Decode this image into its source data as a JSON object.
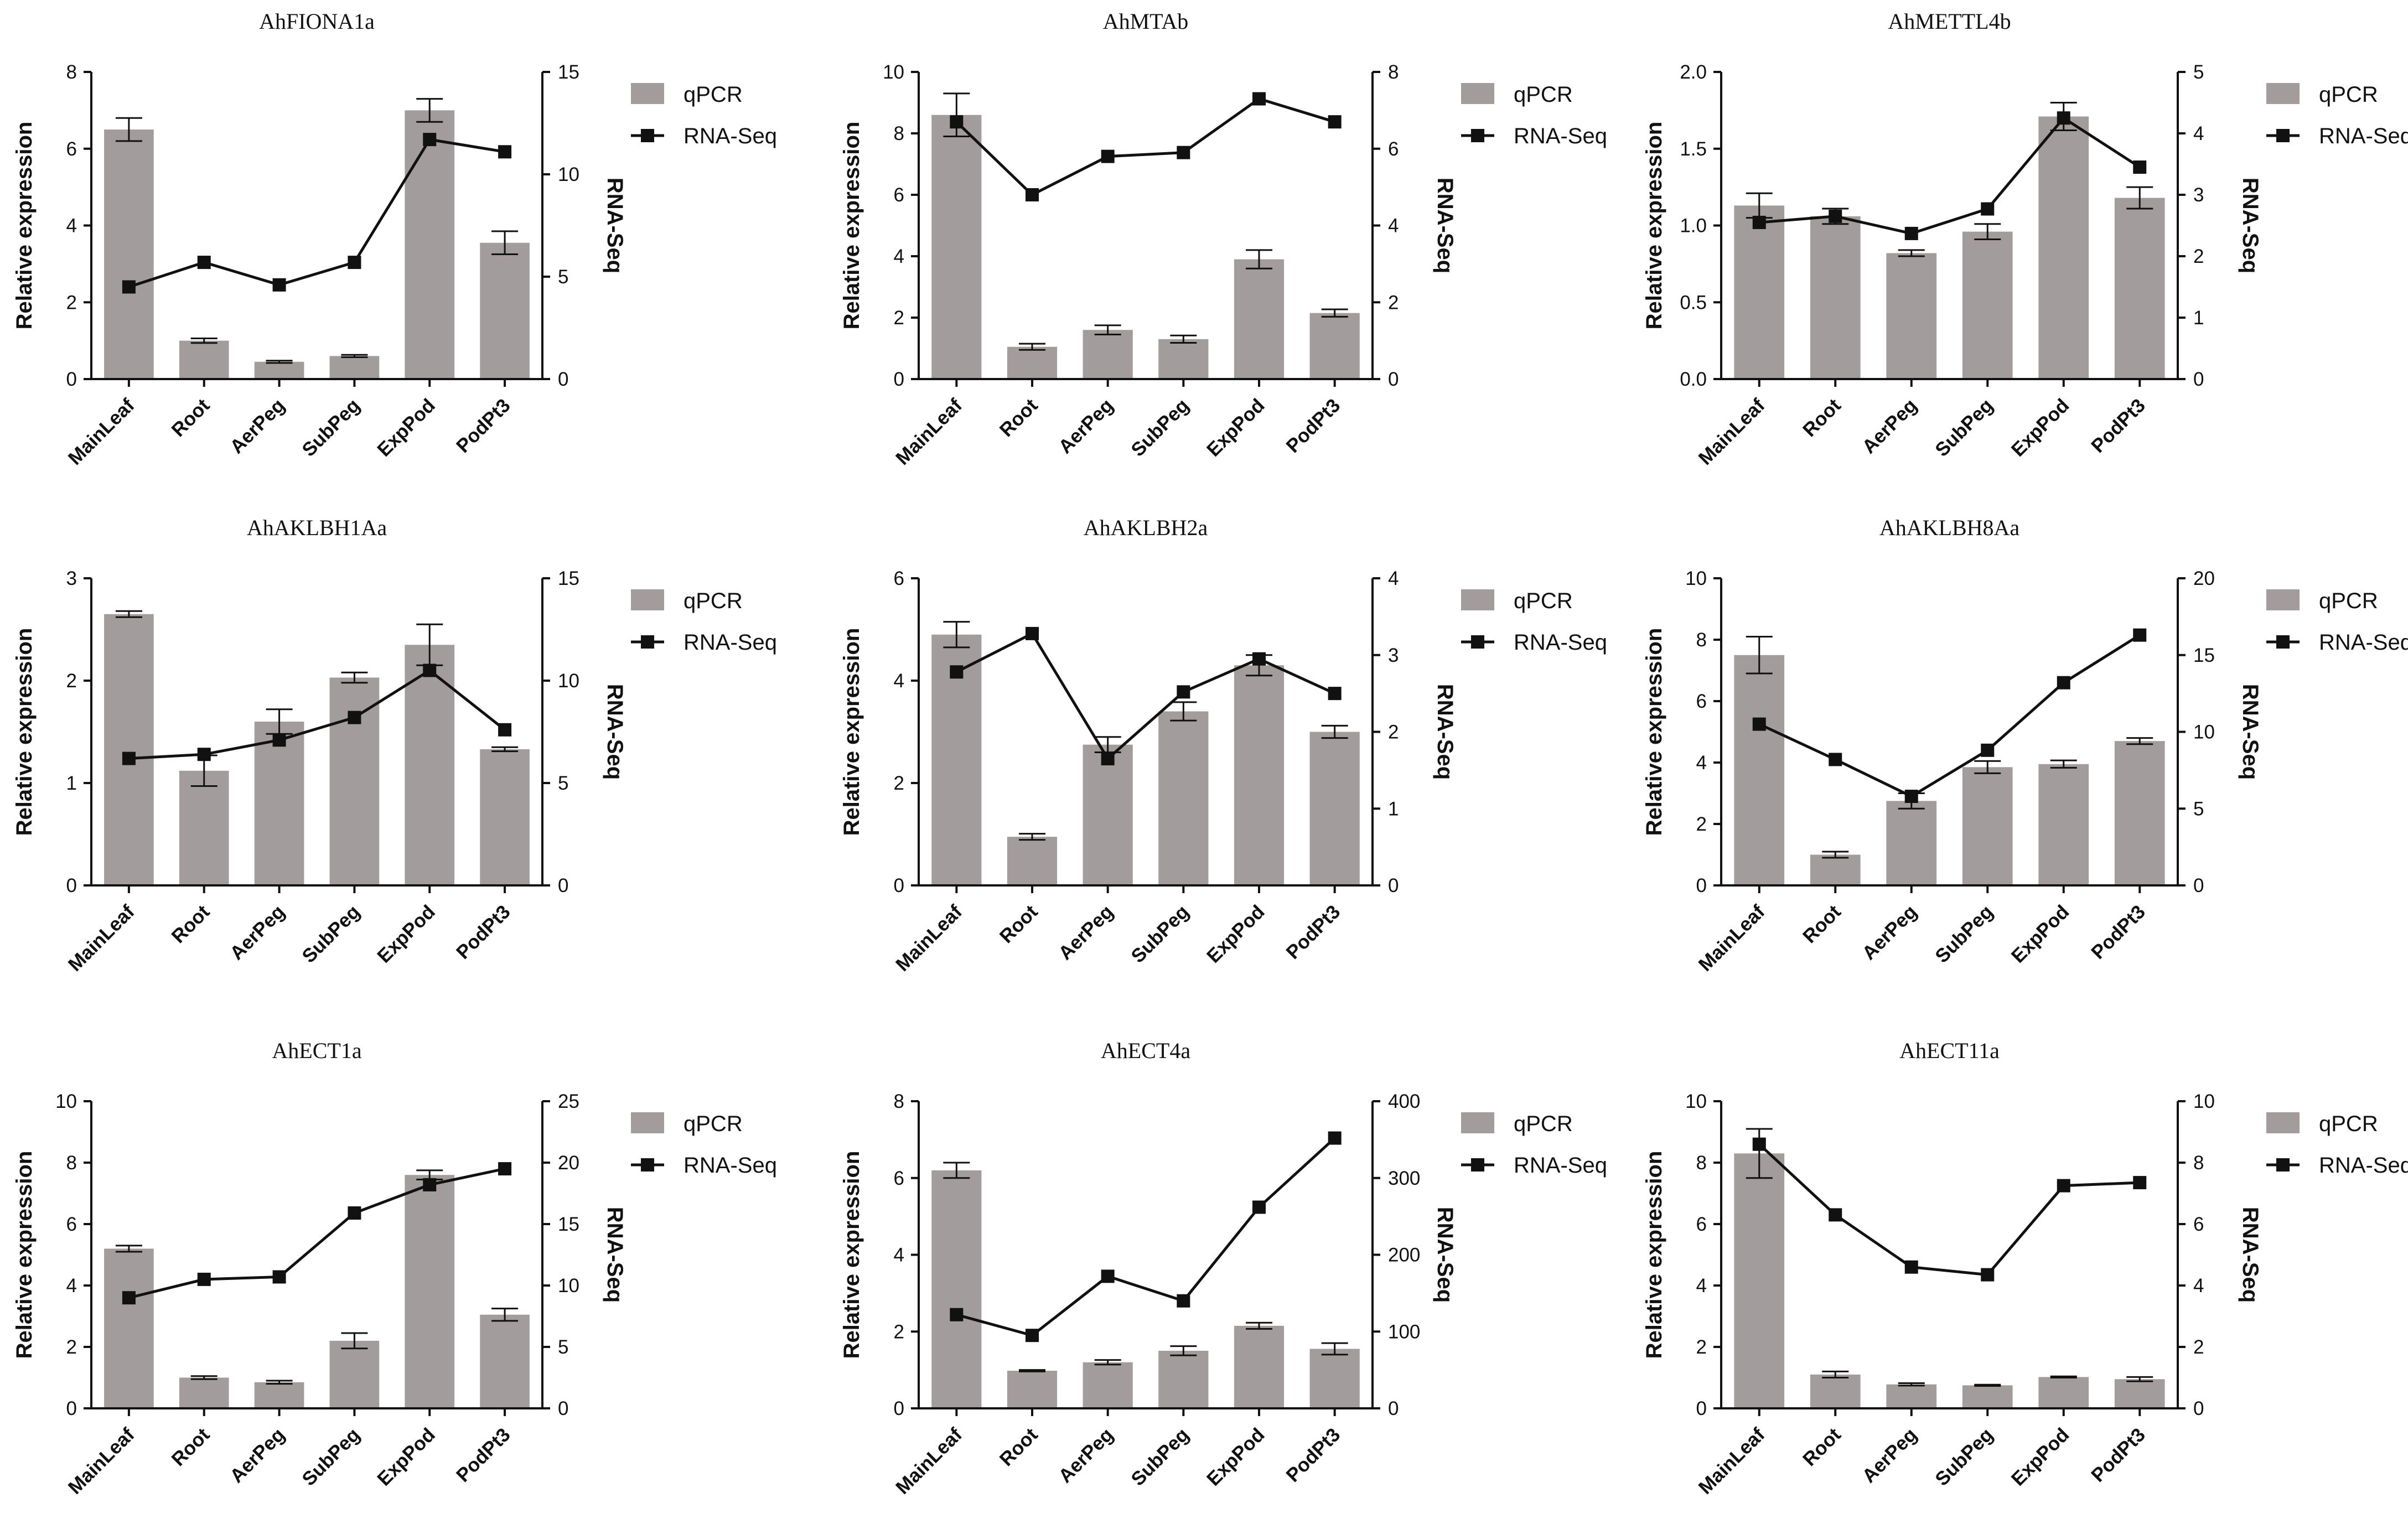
{
  "legend": {
    "bar_label": "qPCR",
    "line_label": "RNA-Seq"
  },
  "colors": {
    "bar": "#a39c9c",
    "line": "#111111",
    "axis": "#111111"
  },
  "chart_data": [
    {
      "type": "bar+line",
      "title": "AhFIONA1a",
      "categories": [
        "MainLeaf",
        "Root",
        "AerPeg",
        "SubPeg",
        "ExpPod",
        "PodPt3"
      ],
      "ylabel": "Relative expression",
      "y2label": "RNA-Seq",
      "ylim": [
        0,
        8
      ],
      "yticks": [
        0,
        2,
        4,
        6,
        8
      ],
      "y2lim": [
        0,
        15
      ],
      "y2ticks": [
        0,
        5,
        10,
        15
      ],
      "series": [
        {
          "name": "qPCR",
          "kind": "bar",
          "values": [
            6.5,
            1.0,
            0.45,
            0.6,
            7.0,
            3.55
          ],
          "errors": [
            0.3,
            0.06,
            0.03,
            0.03,
            0.3,
            0.3
          ]
        },
        {
          "name": "RNA-Seq",
          "kind": "line",
          "axis": "right",
          "values": [
            4.5,
            5.7,
            4.6,
            5.7,
            11.7,
            11.1
          ]
        }
      ]
    },
    {
      "type": "bar+line",
      "title": "AhMTAb",
      "categories": [
        "MainLeaf",
        "Root",
        "AerPeg",
        "SubPeg",
        "ExpPod",
        "PodPt3"
      ],
      "ylabel": "Relative expression",
      "y2label": "RNA-Seq",
      "ylim": [
        0,
        10
      ],
      "yticks": [
        0,
        2,
        4,
        6,
        8,
        10
      ],
      "y2lim": [
        0,
        8
      ],
      "y2ticks": [
        0,
        2,
        4,
        6,
        8
      ],
      "series": [
        {
          "name": "qPCR",
          "kind": "bar",
          "values": [
            8.6,
            1.05,
            1.6,
            1.3,
            3.9,
            2.15
          ],
          "errors": [
            0.7,
            0.1,
            0.15,
            0.12,
            0.3,
            0.12
          ]
        },
        {
          "name": "RNA-Seq",
          "kind": "line",
          "axis": "right",
          "values": [
            6.7,
            4.8,
            5.8,
            5.9,
            7.3,
            6.7
          ]
        }
      ]
    },
    {
      "type": "bar+line",
      "title": "AhMETTL4b",
      "categories": [
        "MainLeaf",
        "Root",
        "AerPeg",
        "SubPeg",
        "ExpPod",
        "PodPt3"
      ],
      "ylabel": "Relative expression",
      "y2label": "RNA-Seq",
      "ylim": [
        0,
        2
      ],
      "yticks": [
        0.0,
        0.5,
        1.0,
        1.5,
        2.0
      ],
      "ytick_labels": [
        "0.0",
        "0.5",
        "1.0",
        "1.5",
        "2.0"
      ],
      "y2lim": [
        0,
        5
      ],
      "y2ticks": [
        0,
        1,
        2,
        3,
        4,
        5
      ],
      "series": [
        {
          "name": "qPCR",
          "kind": "bar",
          "values": [
            1.13,
            1.06,
            0.82,
            0.96,
            1.71,
            1.18
          ],
          "errors": [
            0.08,
            0.05,
            0.02,
            0.05,
            0.09,
            0.07
          ]
        },
        {
          "name": "RNA-Seq",
          "kind": "line",
          "axis": "right",
          "values": [
            2.55,
            2.65,
            2.37,
            2.77,
            4.25,
            3.45
          ]
        }
      ]
    },
    {
      "type": "bar+line",
      "title": "AhAKLBH1Aa",
      "categories": [
        "MainLeaf",
        "Root",
        "AerPeg",
        "SubPeg",
        "ExpPod",
        "PodPt3"
      ],
      "ylabel": "Relative expression",
      "y2label": "RNA-Seq",
      "ylim": [
        0,
        3
      ],
      "yticks": [
        0,
        1,
        2,
        3
      ],
      "y2lim": [
        0,
        15
      ],
      "y2ticks": [
        0,
        5,
        10,
        15
      ],
      "series": [
        {
          "name": "qPCR",
          "kind": "bar",
          "values": [
            2.65,
            1.12,
            1.6,
            2.03,
            2.35,
            1.33
          ],
          "errors": [
            0.03,
            0.15,
            0.12,
            0.05,
            0.2,
            0.02
          ]
        },
        {
          "name": "RNA-Seq",
          "kind": "line",
          "axis": "right",
          "values": [
            6.2,
            6.4,
            7.1,
            8.2,
            10.5,
            7.6
          ]
        }
      ]
    },
    {
      "type": "bar+line",
      "title": "AhAKLBH2a",
      "categories": [
        "MainLeaf",
        "Root",
        "AerPeg",
        "SubPeg",
        "ExpPod",
        "PodPt3"
      ],
      "ylabel": "Relative expression",
      "y2label": "RNA-Seq",
      "ylim": [
        0,
        6
      ],
      "yticks": [
        0,
        2,
        4,
        6
      ],
      "y2lim": [
        0,
        4
      ],
      "y2ticks": [
        0,
        1,
        2,
        3,
        4
      ],
      "series": [
        {
          "name": "qPCR",
          "kind": "bar",
          "values": [
            4.9,
            0.95,
            2.75,
            3.4,
            4.3,
            3.0
          ],
          "errors": [
            0.25,
            0.06,
            0.15,
            0.18,
            0.2,
            0.12
          ]
        },
        {
          "name": "RNA-Seq",
          "kind": "line",
          "axis": "right",
          "values": [
            2.78,
            3.28,
            1.65,
            2.52,
            2.95,
            2.5
          ]
        }
      ]
    },
    {
      "type": "bar+line",
      "title": "AhAKLBH8Aa",
      "categories": [
        "MainLeaf",
        "Root",
        "AerPeg",
        "SubPeg",
        "ExpPod",
        "PodPt3"
      ],
      "ylabel": "Relative expression",
      "y2label": "RNA-Seq",
      "ylim": [
        0,
        10
      ],
      "yticks": [
        0,
        2,
        4,
        6,
        8,
        10
      ],
      "y2lim": [
        0,
        20
      ],
      "y2ticks": [
        0,
        5,
        10,
        15,
        20
      ],
      "series": [
        {
          "name": "qPCR",
          "kind": "bar",
          "values": [
            7.5,
            1.0,
            2.75,
            3.85,
            3.95,
            4.7
          ],
          "errors": [
            0.6,
            0.1,
            0.25,
            0.2,
            0.12,
            0.1
          ]
        },
        {
          "name": "RNA-Seq",
          "kind": "line",
          "axis": "right",
          "values": [
            10.5,
            8.2,
            5.8,
            8.8,
            13.2,
            16.3
          ]
        }
      ]
    },
    {
      "type": "bar+line",
      "title": "AhECT1a",
      "categories": [
        "MainLeaf",
        "Root",
        "AerPeg",
        "SubPeg",
        "ExpPod",
        "PodPt3"
      ],
      "ylabel": "Relative expression",
      "y2label": "RNA-Seq",
      "ylim": [
        0,
        10
      ],
      "yticks": [
        0,
        2,
        4,
        6,
        8,
        10
      ],
      "y2lim": [
        0,
        25
      ],
      "y2ticks": [
        0,
        5,
        10,
        15,
        20,
        25
      ],
      "series": [
        {
          "name": "qPCR",
          "kind": "bar",
          "values": [
            5.2,
            1.0,
            0.85,
            2.2,
            7.6,
            3.05
          ],
          "errors": [
            0.1,
            0.05,
            0.05,
            0.25,
            0.15,
            0.2
          ]
        },
        {
          "name": "RNA-Seq",
          "kind": "line",
          "axis": "right",
          "values": [
            9.0,
            10.5,
            10.7,
            15.9,
            18.2,
            19.5
          ]
        }
      ]
    },
    {
      "type": "bar+line",
      "title": "AhECT4a",
      "categories": [
        "MainLeaf",
        "Root",
        "AerPeg",
        "SubPeg",
        "ExpPod",
        "PodPt3"
      ],
      "ylabel": "Relative expression",
      "y2label": "RNA-Seq",
      "ylim": [
        0,
        8
      ],
      "yticks": [
        0,
        2,
        4,
        6,
        8
      ],
      "y2lim": [
        0,
        400
      ],
      "y2ticks": [
        0,
        100,
        200,
        300,
        400
      ],
      "series": [
        {
          "name": "qPCR",
          "kind": "bar",
          "values": [
            6.2,
            0.98,
            1.2,
            1.5,
            2.15,
            1.55
          ],
          "errors": [
            0.2,
            0.02,
            0.06,
            0.12,
            0.08,
            0.15
          ]
        },
        {
          "name": "RNA-Seq",
          "kind": "line",
          "axis": "right",
          "values": [
            122,
            95,
            172,
            140,
            262,
            352
          ]
        }
      ]
    },
    {
      "type": "bar+line",
      "title": "AhECT11a",
      "categories": [
        "MainLeaf",
        "Root",
        "AerPeg",
        "SubPeg",
        "ExpPod",
        "PodPt3"
      ],
      "ylabel": "Relative expression",
      "y2label": "RNA-Seq",
      "ylim": [
        0,
        10
      ],
      "yticks": [
        0,
        2,
        4,
        6,
        8,
        10
      ],
      "y2lim": [
        0,
        10
      ],
      "y2ticks": [
        0,
        2,
        4,
        6,
        8,
        10
      ],
      "series": [
        {
          "name": "qPCR",
          "kind": "bar",
          "values": [
            8.3,
            1.1,
            0.78,
            0.75,
            1.02,
            0.95
          ],
          "errors": [
            0.8,
            0.1,
            0.04,
            0.02,
            0.02,
            0.07
          ]
        },
        {
          "name": "RNA-Seq",
          "kind": "line",
          "axis": "right",
          "values": [
            8.6,
            6.3,
            4.6,
            4.35,
            7.25,
            7.35
          ]
        }
      ]
    }
  ]
}
